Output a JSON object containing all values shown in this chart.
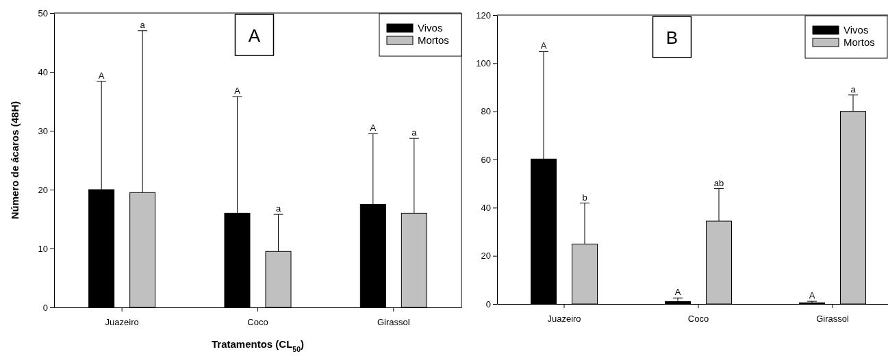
{
  "chart_data": [
    {
      "type": "bar",
      "categories": [
        "Juazeiro",
        "Coco",
        "Girassol"
      ],
      "xlabel": "Tratamentos (CL$_{50}$)",
      "ylabel": "Número de ácaros (48H)",
      "ylim": [
        0,
        50
      ],
      "yticks": [
        0,
        10,
        20,
        30,
        40,
        50
      ],
      "legend": "top right",
      "grid": false,
      "series": [
        {
          "name": "Vivos",
          "color": "#000000",
          "values": [
            20.0,
            16.0,
            17.5
          ],
          "errors": [
            [
              20.0,
              38.4
            ],
            [
              16.0,
              35.8
            ],
            [
              17.5,
              29.5
            ]
          ]
        },
        {
          "name": "Mortos",
          "color": "#c0c0c0",
          "values": [
            19.5,
            9.5,
            16.0
          ],
          "errors": [
            [
              19.5,
              47.0
            ],
            [
              9.5,
              15.8
            ],
            [
              16.0,
              28.7
            ]
          ]
        }
      ],
      "annotations": [
        "A",
        "A",
        "a",
        "A",
        "a",
        "A",
        "a"
      ]
    },
    {
      "type": "bar",
      "categories": [
        "Juazeiro",
        "Coco",
        "Girassol"
      ],
      "ylim": [
        0,
        120
      ],
      "yticks": [
        0,
        20,
        40,
        60,
        80,
        100,
        120
      ],
      "legend": "top right",
      "grid": false,
      "series": [
        {
          "name": "Vivos",
          "color": "#000000",
          "values": [
            60.2,
            1.0,
            0.5
          ],
          "errors": [
            [
              60.2,
              104.8
            ],
            [
              1.0,
              2.5
            ],
            [
              0.5,
              1.1
            ]
          ]
        },
        {
          "name": "Mortos",
          "color": "#c0c0c0",
          "values": [
            24.9,
            34.4,
            80.0
          ],
          "errors": [
            [
              24.9,
              41.9
            ],
            [
              34.4,
              47.9
            ],
            [
              80.0,
              86.8
            ]
          ]
        }
      ],
      "annotations": [
        "B",
        "A",
        "b",
        "A",
        "ab",
        "A",
        "a"
      ]
    }
  ]
}
